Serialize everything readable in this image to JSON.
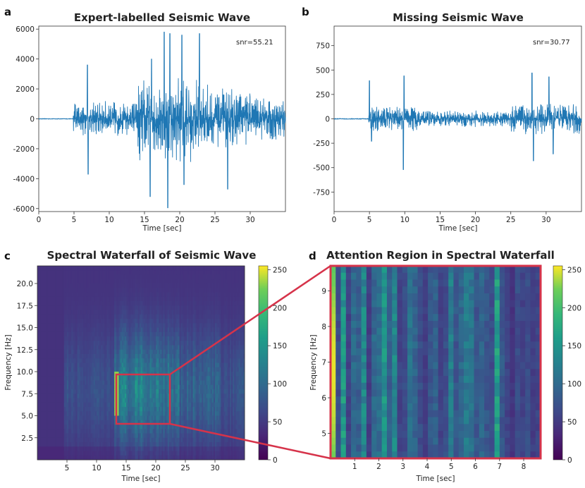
{
  "chart_data": [
    {
      "id": "a",
      "panel_label": "a",
      "type": "line",
      "title": "Expert-labelled Seismic Wave",
      "xlabel": "Time [sec]",
      "ylabel": "",
      "xlim": [
        0,
        35
      ],
      "ylim": [
        -6200,
        6200
      ],
      "xticks": [
        0,
        5,
        10,
        15,
        20,
        25,
        30
      ],
      "yticks": [
        -6000,
        -4000,
        -2000,
        0,
        2000,
        4000,
        6000
      ],
      "annotation": "snr=55.21",
      "color": "#1f77b4",
      "series": [
        {
          "name": "seismic wave",
          "onset_sec": 4.9,
          "peak": 5800,
          "trough": -5950,
          "approx_peak_times_sec": [
            7.0,
            15.8,
            17.8,
            18.6,
            20.3,
            22.8,
            26.8
          ]
        }
      ]
    },
    {
      "id": "b",
      "panel_label": "b",
      "type": "line",
      "title": "Missing Seismic Wave",
      "xlabel": "Time [sec]",
      "ylabel": "",
      "xlim": [
        0,
        35
      ],
      "ylim": [
        -950,
        950
      ],
      "xticks": [
        0,
        5,
        10,
        15,
        20,
        25,
        30
      ],
      "yticks": [
        -750,
        -500,
        -250,
        0,
        250,
        500,
        750
      ],
      "annotation": "snr=30.77",
      "color": "#1f77b4",
      "series": [
        {
          "name": "seismic wave",
          "onset_sec": 4.9,
          "peak": 470,
          "trough": -520,
          "approx_peak_times_sec": [
            5.0,
            9.9,
            28.0,
            30.5
          ]
        }
      ]
    },
    {
      "id": "c",
      "panel_label": "c",
      "type": "heatmap",
      "title": "Spectral Waterfall of Seismic Wave",
      "xlabel": "Time [sec]",
      "ylabel": "Frequency [Hz]",
      "xlim": [
        0,
        35
      ],
      "ylim": [
        0,
        22
      ],
      "xticks": [
        5,
        10,
        15,
        20,
        25,
        30
      ],
      "yticks": [
        2.5,
        5.0,
        7.5,
        10.0,
        12.5,
        15.0,
        17.5,
        20.0
      ],
      "colorbar": {
        "range": [
          0,
          255
        ],
        "ticks": [
          0,
          50,
          100,
          150,
          200,
          250
        ],
        "colormap": "viridis"
      },
      "highlight_region": {
        "t_range": [
          13.5,
          22.2
        ],
        "f_range": [
          4.3,
          9.7
        ]
      }
    },
    {
      "id": "d",
      "panel_label": "d",
      "type": "heatmap",
      "title": "Attention Region in Spectral Waterfall",
      "xlabel": "Time [sec]",
      "ylabel": "Frequency [Hz]",
      "xlim": [
        0,
        8.7
      ],
      "ylim": [
        4.3,
        9.7
      ],
      "xticks": [
        1,
        2,
        3,
        4,
        5,
        6,
        7,
        8
      ],
      "yticks": [
        5,
        6,
        7,
        8,
        9
      ],
      "colorbar": {
        "range": [
          0,
          255
        ],
        "ticks": [
          0,
          50,
          100,
          150,
          200,
          250
        ],
        "colormap": "viridis"
      },
      "column_intensity": [
        230,
        70,
        155,
        60,
        100,
        90,
        135,
        55,
        100,
        105,
        150,
        90,
        135,
        60,
        70,
        110,
        95,
        70,
        55,
        80,
        90,
        60,
        70,
        125,
        80,
        100,
        120,
        115,
        80,
        95,
        80,
        70,
        160,
        80,
        60,
        45,
        70,
        60,
        70,
        55,
        60
      ]
    }
  ]
}
